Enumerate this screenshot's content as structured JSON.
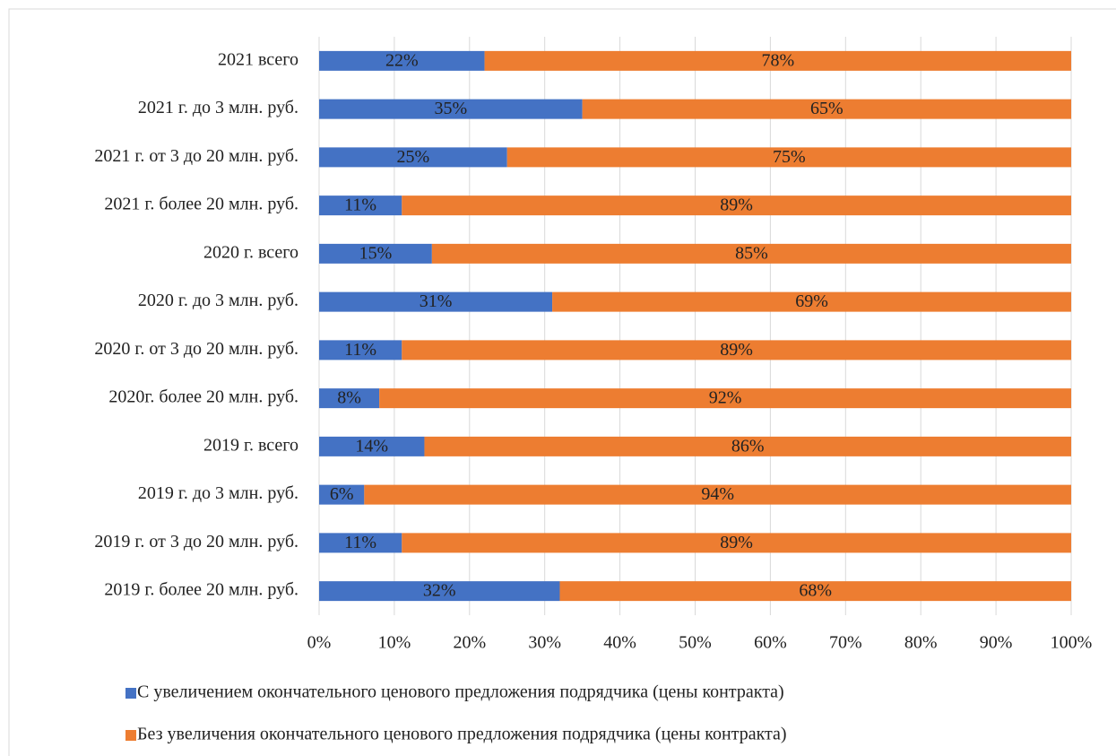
{
  "chart_data": {
    "type": "stacked_barh",
    "categories": [
      "2021 всего",
      "2021 г. до 3 млн. руб.",
      "2021 г. от 3 до 20 млн. руб.",
      "2021 г. более 20 млн. руб.",
      "2020 г. всего",
      "2020 г. до 3 млн. руб.",
      "2020 г. от 3 до 20 млн. руб.",
      "2020г. более 20 млн. руб.",
      "2019 г. всего",
      "2019 г. до 3 млн. руб.",
      "2019 г. от 3 до 20 млн. руб.",
      "2019 г. более 20 млн. руб."
    ],
    "series": [
      {
        "name": "С увеличением окончательного ценового предложения подрядчика (цены контракта)",
        "color": "#4472c4",
        "values": [
          22,
          35,
          25,
          11,
          15,
          31,
          11,
          8,
          14,
          6,
          11,
          32
        ],
        "value_labels": [
          "22%",
          "35%",
          "25%",
          "11%",
          "15%",
          "31%",
          "11%",
          "8%",
          "14%",
          "6%",
          "11%",
          "32%"
        ]
      },
      {
        "name": "Без увеличения окончательного ценового предложения подрядчика (цены контракта)",
        "color": "#ed7d31",
        "values": [
          78,
          65,
          75,
          89,
          85,
          69,
          89,
          92,
          86,
          94,
          89,
          68
        ],
        "value_labels": [
          "78%",
          "65%",
          "75%",
          "89%",
          "85%",
          "69%",
          "89%",
          "92%",
          "86%",
          "94%",
          "89%",
          "68%"
        ]
      }
    ],
    "xlim": [
      0,
      100
    ],
    "xticks": [
      {
        "value": 0,
        "label": "0%"
      },
      {
        "value": 10,
        "label": "10%"
      },
      {
        "value": 20,
        "label": "20%"
      },
      {
        "value": 30,
        "label": "30%"
      },
      {
        "value": 40,
        "label": "40%"
      },
      {
        "value": 50,
        "label": "50%"
      },
      {
        "value": 60,
        "label": "60%"
      },
      {
        "value": 70,
        "label": "70%"
      },
      {
        "value": 80,
        "label": "80%"
      },
      {
        "value": 90,
        "label": "90%"
      },
      {
        "value": 100,
        "label": "100%"
      }
    ],
    "grid": true,
    "legend": "bottom"
  }
}
